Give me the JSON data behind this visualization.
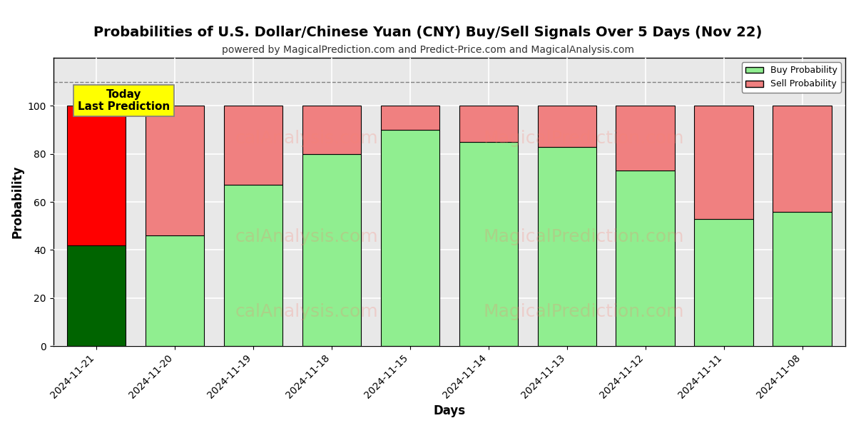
{
  "title": "Probabilities of U.S. Dollar/Chinese Yuan (CNY) Buy/Sell Signals Over 5 Days (Nov 22)",
  "subtitle": "powered by MagicalPrediction.com and Predict-Price.com and MagicalAnalysis.com",
  "xlabel": "Days",
  "ylabel": "Probability",
  "dates": [
    "2024-11-21",
    "2024-11-20",
    "2024-11-19",
    "2024-11-18",
    "2024-11-15",
    "2024-11-14",
    "2024-11-13",
    "2024-11-12",
    "2024-11-11",
    "2024-11-08"
  ],
  "buy_values": [
    42,
    46,
    67,
    80,
    90,
    85,
    83,
    73,
    53,
    56
  ],
  "sell_values": [
    58,
    54,
    33,
    20,
    10,
    15,
    17,
    27,
    47,
    44
  ],
  "today_buy_color": "#006400",
  "today_sell_color": "#FF0000",
  "buy_color": "#90EE90",
  "sell_color": "#F08080",
  "today_annotation_bg": "#FFFF00",
  "today_annotation_text": "Today\nLast Prediction",
  "ylim": [
    0,
    120
  ],
  "yticks": [
    0,
    20,
    40,
    60,
    80,
    100
  ],
  "dashed_line_y": 110,
  "legend_buy_label": "Buy Probability",
  "legend_sell_label": "Sell Probability",
  "bar_edge_color": "#000000",
  "bar_linewidth": 0.8,
  "watermark_lines": [
    "calAnalysis.com",
    "MagicalPrediction.com",
    "calAnalysis.com",
    "MagicalPrediction.com"
  ],
  "figsize": [
    12,
    6
  ],
  "dpi": 100,
  "bg_color": "#e8e8e8",
  "grid_color": "white",
  "title_fontsize": 14,
  "subtitle_fontsize": 10,
  "bar_width": 0.75
}
